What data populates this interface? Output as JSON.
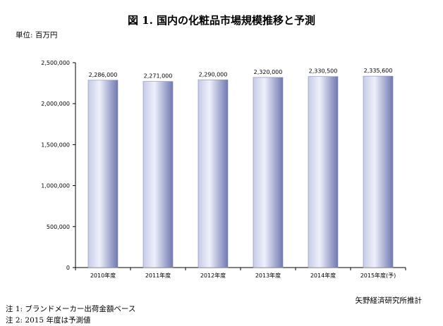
{
  "title": "図 1.  国内の化粧品市場規模推移と予測",
  "unit_label": "単位: 百万円",
  "source": "矢野経済研究所推計",
  "notes": [
    "注 1:  ブランドメーカー出荷金額ベース",
    "注 2: 2015 年度は予測値"
  ],
  "colors": {
    "bar_light": "#eef0fa",
    "bar_mid": "#c6cce8",
    "bar_dark": "#6f79b0",
    "axis": "#000000"
  },
  "chart_data": {
    "type": "bar",
    "categories": [
      "2010年度",
      "2011年度",
      "2012年度",
      "2013年度",
      "2014年度",
      "2015年度(予)"
    ],
    "values": [
      2286000,
      2271000,
      2290000,
      2320000,
      2330500,
      2335600
    ],
    "data_labels": [
      "2,286,000",
      "2,271,000",
      "2,290,000",
      "2,320,000",
      "2,330,500",
      "2,335,600"
    ],
    "ylim": [
      0,
      2500000
    ],
    "yticks": [
      0,
      500000,
      1000000,
      1500000,
      2000000,
      2500000
    ],
    "ytick_labels": [
      "0",
      "500,000",
      "1,000,000",
      "1,500,000",
      "2,000,000",
      "2,500,000"
    ],
    "grid": false,
    "legend": "none"
  }
}
